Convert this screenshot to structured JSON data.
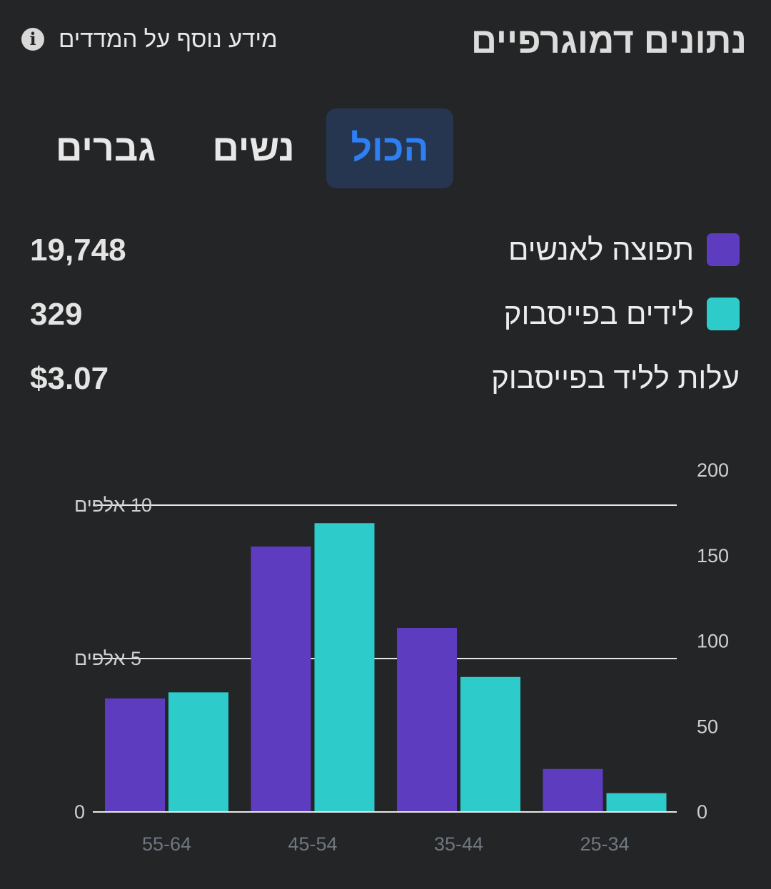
{
  "header": {
    "title": "נתונים דמוגרפיים",
    "info_label": "מידע נוסף על המדדים",
    "info_icon": "info-icon"
  },
  "tabs": [
    {
      "label": "הכול",
      "active": true
    },
    {
      "label": "נשים",
      "active": false
    },
    {
      "label": "גברים",
      "active": false
    }
  ],
  "metrics": [
    {
      "label": "תפוצה לאנשים",
      "value": "19,748",
      "color": "#5d3cbf"
    },
    {
      "label": "לידים בפייסבוק",
      "value": "329",
      "color": "#2ecbcb"
    },
    {
      "label": "עלות לליד בפייסבוק",
      "value": "$3.07"
    }
  ],
  "colors": {
    "background": "#242526",
    "reach": "#5d3cbf",
    "leads": "#2ecbcb",
    "active_tab_bg": "#263650",
    "active_tab_text": "#2d7ff3"
  },
  "chart_data": {
    "type": "bar",
    "categories": [
      "25-34",
      "35-44",
      "45-54",
      "55-64"
    ],
    "category_order": "right-to-left",
    "series": [
      {
        "name": "תפוצה לאנשים",
        "axis": "left",
        "values": [
          1400,
          6000,
          8650,
          3700
        ]
      },
      {
        "name": "לידים בפייסבוק",
        "axis": "right",
        "values": [
          11,
          79,
          169,
          70
        ]
      }
    ],
    "left_axis": {
      "ticks": [
        0,
        5000,
        10000
      ],
      "tick_labels": [
        "0",
        "5 אלפים",
        "10 אלפים"
      ],
      "range": [
        0,
        10000
      ]
    },
    "right_axis": {
      "ticks": [
        0,
        50,
        100,
        150,
        200
      ],
      "tick_labels": [
        "0",
        "50",
        "100",
        "150",
        "200"
      ],
      "range": [
        0,
        180
      ]
    },
    "grid": true,
    "legend": "none"
  }
}
